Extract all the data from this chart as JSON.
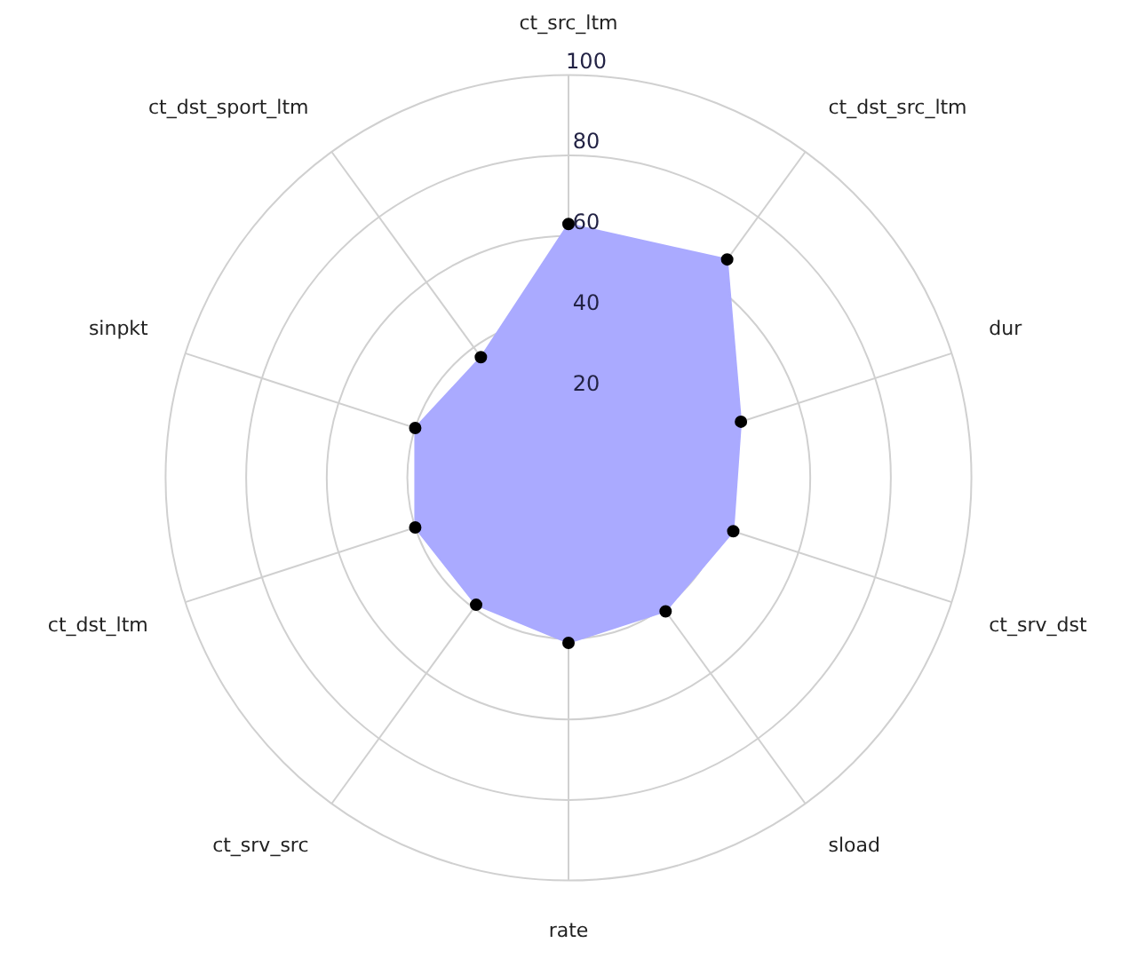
{
  "chart_data": {
    "type": "radar",
    "categories": [
      "ct_src_ltm",
      "ct_dst_src_ltm",
      "dur",
      "ct_srv_dst",
      "sload",
      "rate",
      "ct_srv_src",
      "ct_dst_ltm",
      "sinpkt",
      "ct_dst_sport_ltm"
    ],
    "series": [
      {
        "color": "#aaaaff",
        "values": [
          63,
          67,
          45,
          43,
          41,
          41,
          39,
          40,
          40,
          37
        ]
      }
    ],
    "ylim": [
      0,
      100
    ],
    "yticks": [
      20,
      40,
      60,
      80,
      100
    ],
    "grid": true,
    "marker": "circle",
    "legend": false
  }
}
